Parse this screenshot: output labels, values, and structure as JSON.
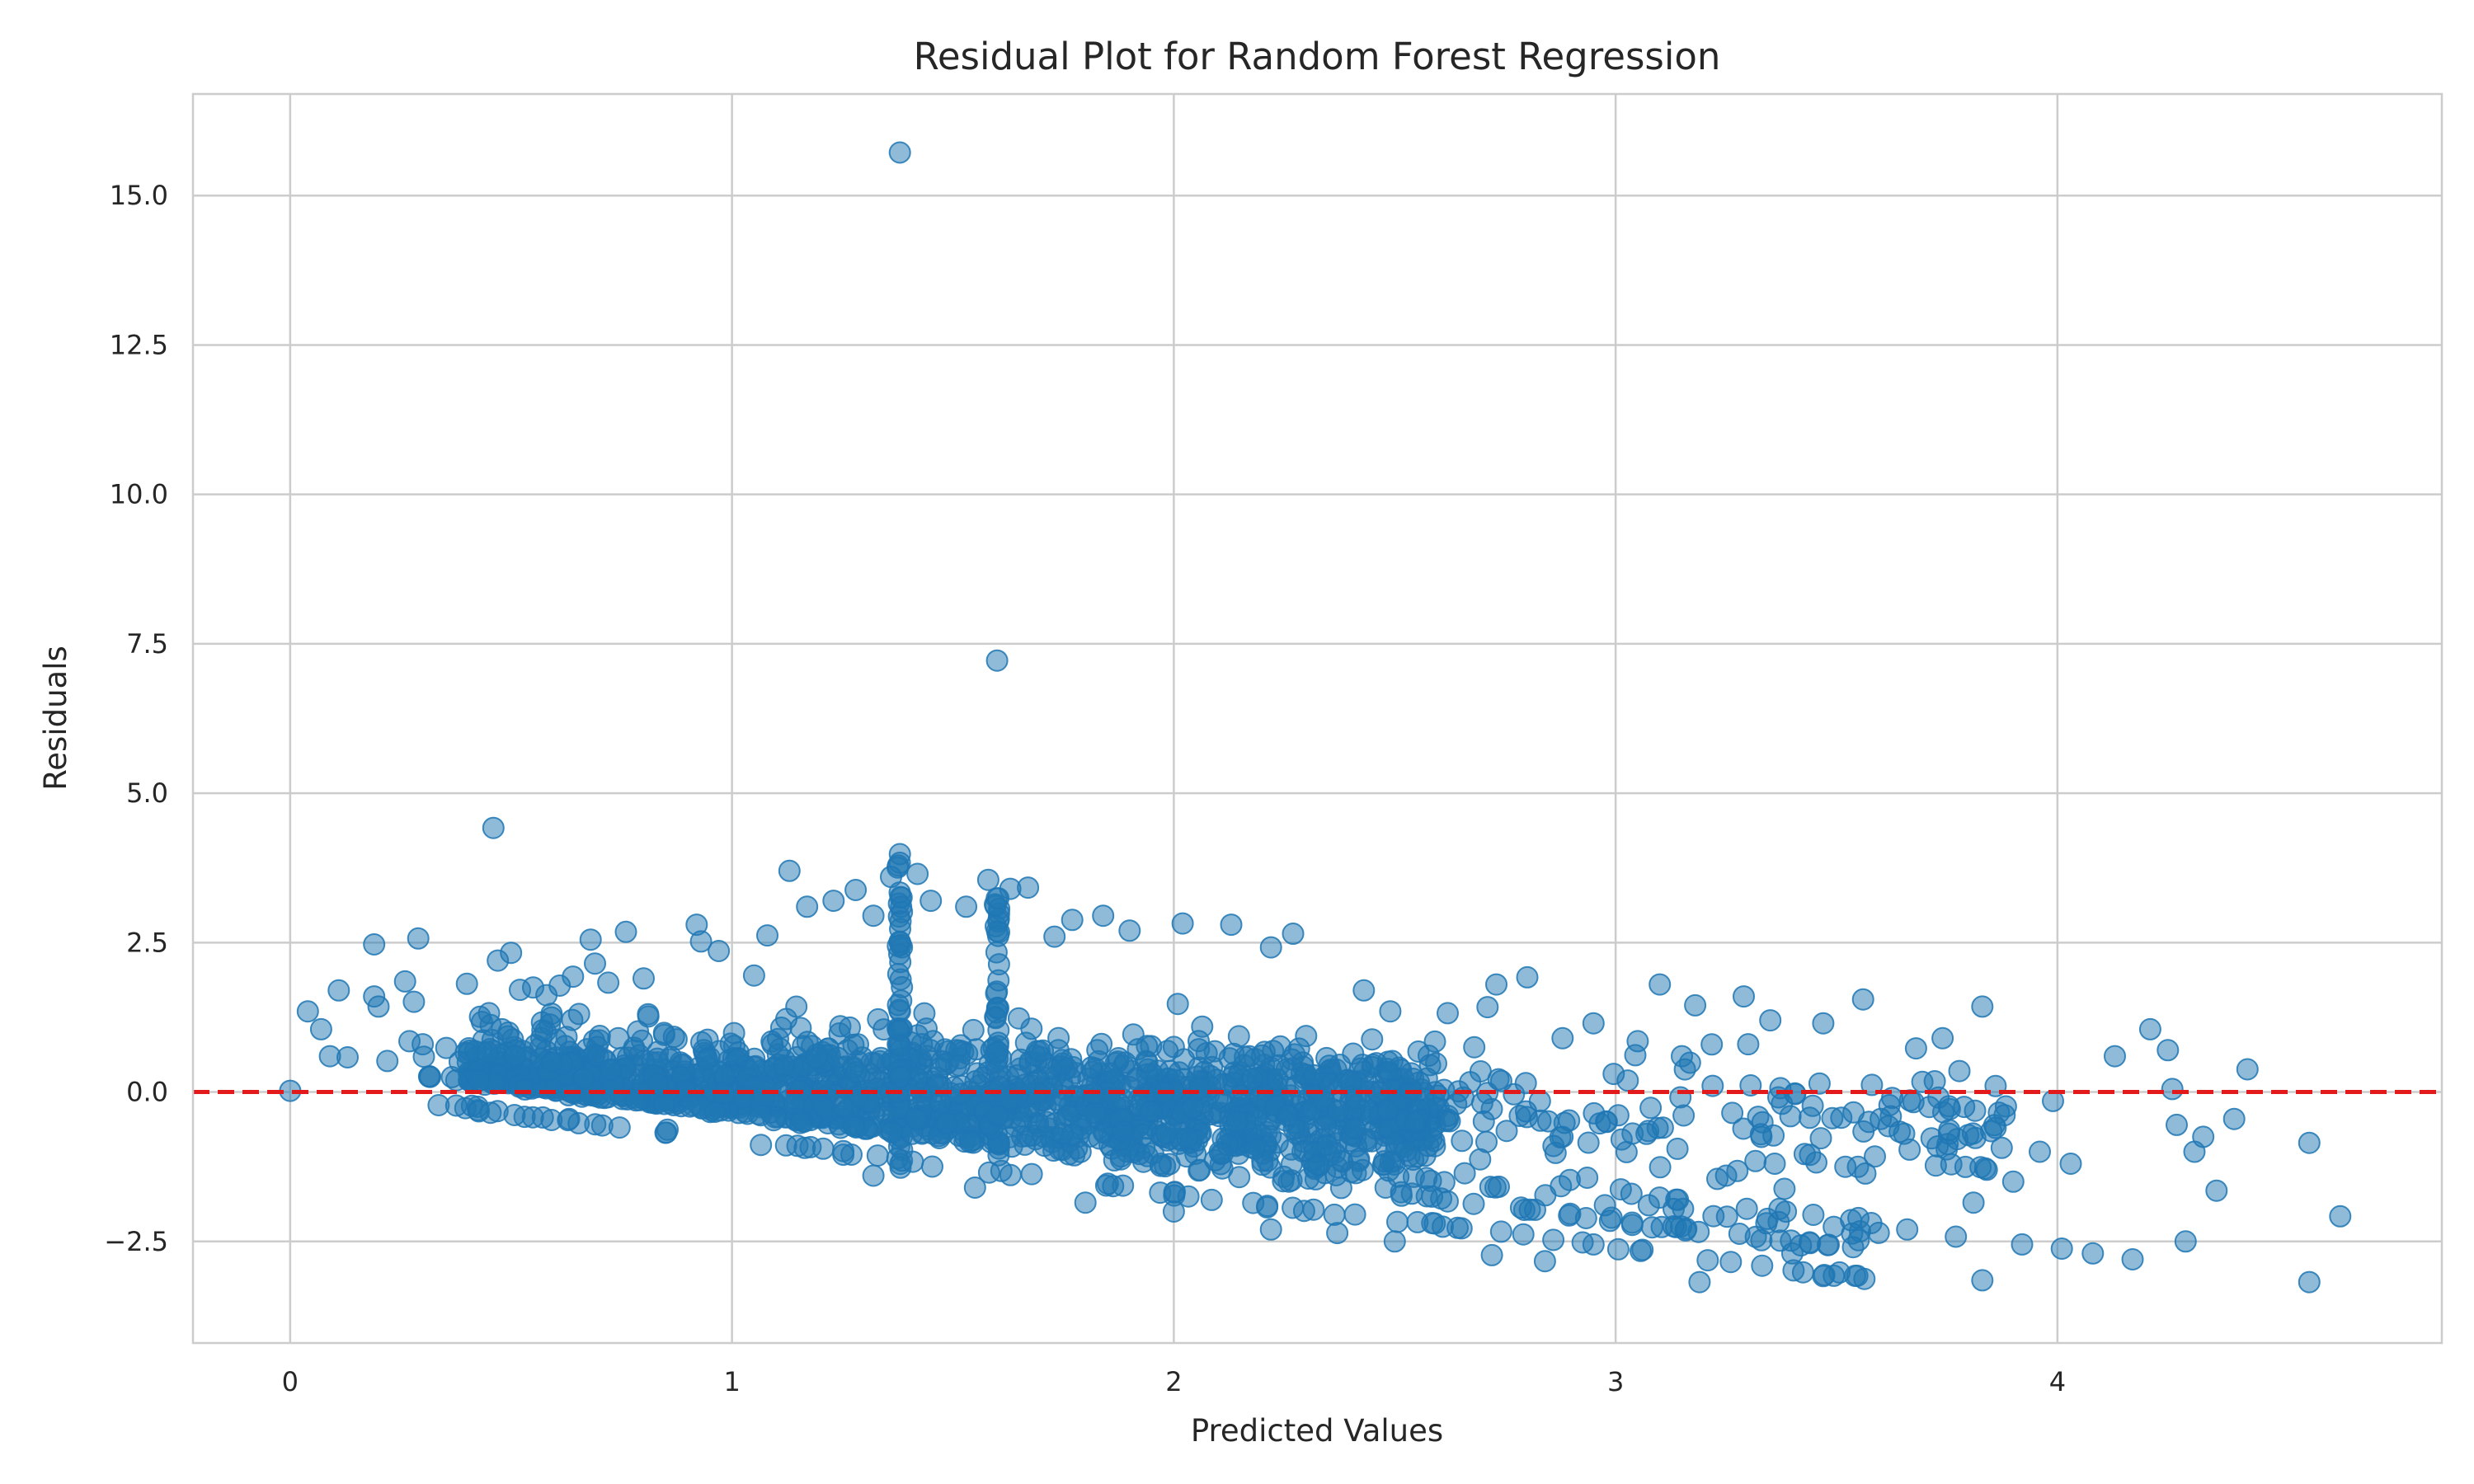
{
  "chart_data": {
    "type": "scatter",
    "title": "Residual Plot for Random Forest Regression",
    "xlabel": "Predicted Values",
    "ylabel": "Residuals",
    "xlim": [
      -0.22,
      4.87
    ],
    "ylim": [
      -4.2,
      16.7
    ],
    "xticks": [
      0,
      1,
      2,
      3,
      4
    ],
    "xtick_labels": [
      "0",
      "1",
      "2",
      "3",
      "4"
    ],
    "yticks": [
      -2.5,
      0.0,
      2.5,
      5.0,
      7.5,
      10.0,
      12.5,
      15.0
    ],
    "ytick_labels": [
      "−2.5",
      "0.0",
      "2.5",
      "5.0",
      "7.5",
      "10.0",
      "12.5",
      "15.0"
    ],
    "grid": true,
    "point_color": "#1f77b4",
    "point_alpha": 0.5,
    "reference_line": {
      "y": 0,
      "color": "#e31a1c",
      "style": "dashed"
    },
    "series": [
      {
        "values": [
          [
            0.0,
            0.02
          ],
          [
            0.04,
            1.35
          ],
          [
            0.07,
            1.05
          ],
          [
            0.09,
            0.6
          ],
          [
            0.11,
            1.7
          ],
          [
            0.13,
            0.58
          ],
          [
            0.19,
            2.47
          ],
          [
            0.19,
            1.6
          ],
          [
            0.2,
            1.43
          ],
          [
            0.22,
            0.52
          ],
          [
            0.26,
            1.85
          ],
          [
            0.27,
            0.85
          ],
          [
            0.28,
            1.51
          ],
          [
            0.29,
            2.57
          ],
          [
            0.3,
            0.8
          ],
          [
            0.4,
            1.81
          ],
          [
            0.45,
            1.32
          ],
          [
            0.46,
            4.42
          ],
          [
            0.47,
            2.2
          ],
          [
            0.5,
            2.33
          ],
          [
            0.52,
            1.71
          ],
          [
            0.55,
            1.75
          ],
          [
            0.58,
            1.62
          ],
          [
            0.61,
            1.78
          ],
          [
            0.64,
            1.93
          ],
          [
            0.68,
            2.55
          ],
          [
            0.69,
            2.15
          ],
          [
            0.72,
            1.83
          ],
          [
            0.76,
            2.68
          ],
          [
            0.8,
            1.9
          ],
          [
            0.92,
            2.8
          ],
          [
            0.93,
            2.52
          ],
          [
            0.97,
            2.36
          ],
          [
            1.05,
            1.95
          ],
          [
            1.08,
            2.62
          ],
          [
            1.13,
            3.7
          ],
          [
            1.17,
            3.1
          ],
          [
            1.23,
            3.2
          ],
          [
            1.28,
            3.38
          ],
          [
            1.32,
            2.95
          ],
          [
            1.36,
            3.6
          ],
          [
            1.38,
            3.98
          ],
          [
            1.38,
            15.72
          ],
          [
            1.42,
            3.65
          ],
          [
            1.45,
            3.2
          ],
          [
            1.53,
            3.1
          ],
          [
            1.58,
            3.55
          ],
          [
            1.6,
            7.22
          ],
          [
            1.63,
            3.4
          ],
          [
            1.67,
            3.42
          ],
          [
            1.73,
            2.6
          ],
          [
            1.77,
            2.88
          ],
          [
            1.84,
            2.95
          ],
          [
            1.9,
            2.7
          ],
          [
            2.02,
            2.82
          ],
          [
            2.13,
            2.8
          ],
          [
            2.22,
            2.42
          ],
          [
            2.27,
            2.65
          ],
          [
            2.43,
            1.7
          ],
          [
            2.62,
            1.32
          ],
          [
            2.71,
            1.42
          ],
          [
            2.73,
            1.8
          ],
          [
            2.8,
            1.92
          ],
          [
            2.95,
            1.15
          ],
          [
            3.1,
            1.8
          ],
          [
            3.18,
            1.45
          ],
          [
            3.29,
            1.6
          ],
          [
            3.35,
            1.2
          ],
          [
            3.47,
            1.15
          ],
          [
            3.56,
            1.55
          ],
          [
            3.68,
            0.73
          ],
          [
            3.74,
            0.9
          ],
          [
            3.83,
            1.43
          ],
          [
            4.21,
            1.05
          ],
          [
            4.13,
            0.6
          ],
          [
            4.25,
            0.7
          ],
          [
            4.43,
            0.38
          ],
          [
            4.57,
            -0.85
          ],
          [
            4.64,
            -2.08
          ],
          [
            4.57,
            -3.18
          ],
          [
            4.17,
            -2.8
          ],
          [
            4.29,
            -2.5
          ],
          [
            4.08,
            -2.7
          ],
          [
            4.01,
            -2.62
          ],
          [
            3.92,
            -2.55
          ],
          [
            3.83,
            -3.15
          ],
          [
            3.77,
            -2.42
          ],
          [
            3.66,
            -2.3
          ],
          [
            3.55,
            -2.48
          ],
          [
            3.47,
            -3.08
          ],
          [
            3.4,
            -2.7
          ],
          [
            3.33,
            -2.48
          ],
          [
            3.19,
            -3.18
          ],
          [
            2.95,
            -2.55
          ],
          [
            2.84,
            -2.83
          ],
          [
            2.72,
            -2.73
          ],
          [
            2.5,
            -2.5
          ],
          [
            2.37,
            -2.36
          ],
          [
            2.22,
            -2.3
          ],
          [
            2.0,
            -2.0
          ],
          [
            1.8,
            -1.85
          ],
          [
            1.55,
            -1.6
          ],
          [
            1.32,
            -1.4
          ],
          [
            3.86,
            -0.6
          ],
          [
            3.9,
            -1.5
          ],
          [
            3.96,
            -1.0
          ],
          [
            4.03,
            -1.2
          ],
          [
            4.27,
            -0.55
          ],
          [
            4.33,
            -0.75
          ],
          [
            4.36,
            -1.65
          ],
          [
            4.4,
            -0.45
          ],
          [
            4.31,
            -1.0
          ],
          [
            3.81,
            -1.85
          ],
          [
            3.84,
            -1.3
          ],
          [
            3.6,
            -0.45
          ],
          [
            3.44,
            -1.05
          ],
          [
            3.36,
            -1.2
          ],
          [
            3.52,
            -1.25
          ],
          [
            3.25,
            -1.4
          ],
          [
            3.07,
            -0.7
          ],
          [
            3.14,
            -0.95
          ],
          [
            2.98,
            -0.5
          ],
          [
            3.58,
            0.12
          ],
          [
            3.71,
            -0.25
          ],
          [
            3.86,
            0.1
          ],
          [
            3.99,
            -0.15
          ],
          [
            4.26,
            0.05
          ],
          [
            3.3,
            0.8
          ],
          [
            3.15,
            0.6
          ],
          [
            3.05,
            0.85
          ],
          [
            2.88,
            0.9
          ],
          [
            2.68,
            0.75
          ],
          [
            2.58,
            0.45
          ],
          [
            2.49,
            1.35
          ]
        ]
      }
    ]
  }
}
